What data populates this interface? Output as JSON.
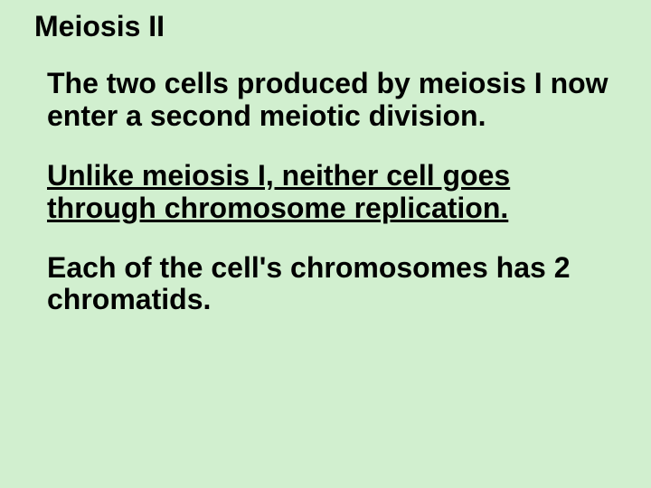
{
  "slide": {
    "background_color": "#d1efcf",
    "text_color": "#000000",
    "font_family": "Arial",
    "title_fontsize": 32,
    "body_fontsize": 32,
    "title_weight": "bold",
    "body_weight": "bold",
    "title": "Meiosis II",
    "paragraphs": [
      {
        "text": "The two cells produced by meiosis I now enter a second meiotic division.",
        "underline": false
      },
      {
        "text": "Unlike meiosis I, neither cell goes through chromosome replication.",
        "underline": true
      },
      {
        "text": "Each of the cell's chromosomes has 2 chromatids.",
        "underline": false
      }
    ]
  }
}
